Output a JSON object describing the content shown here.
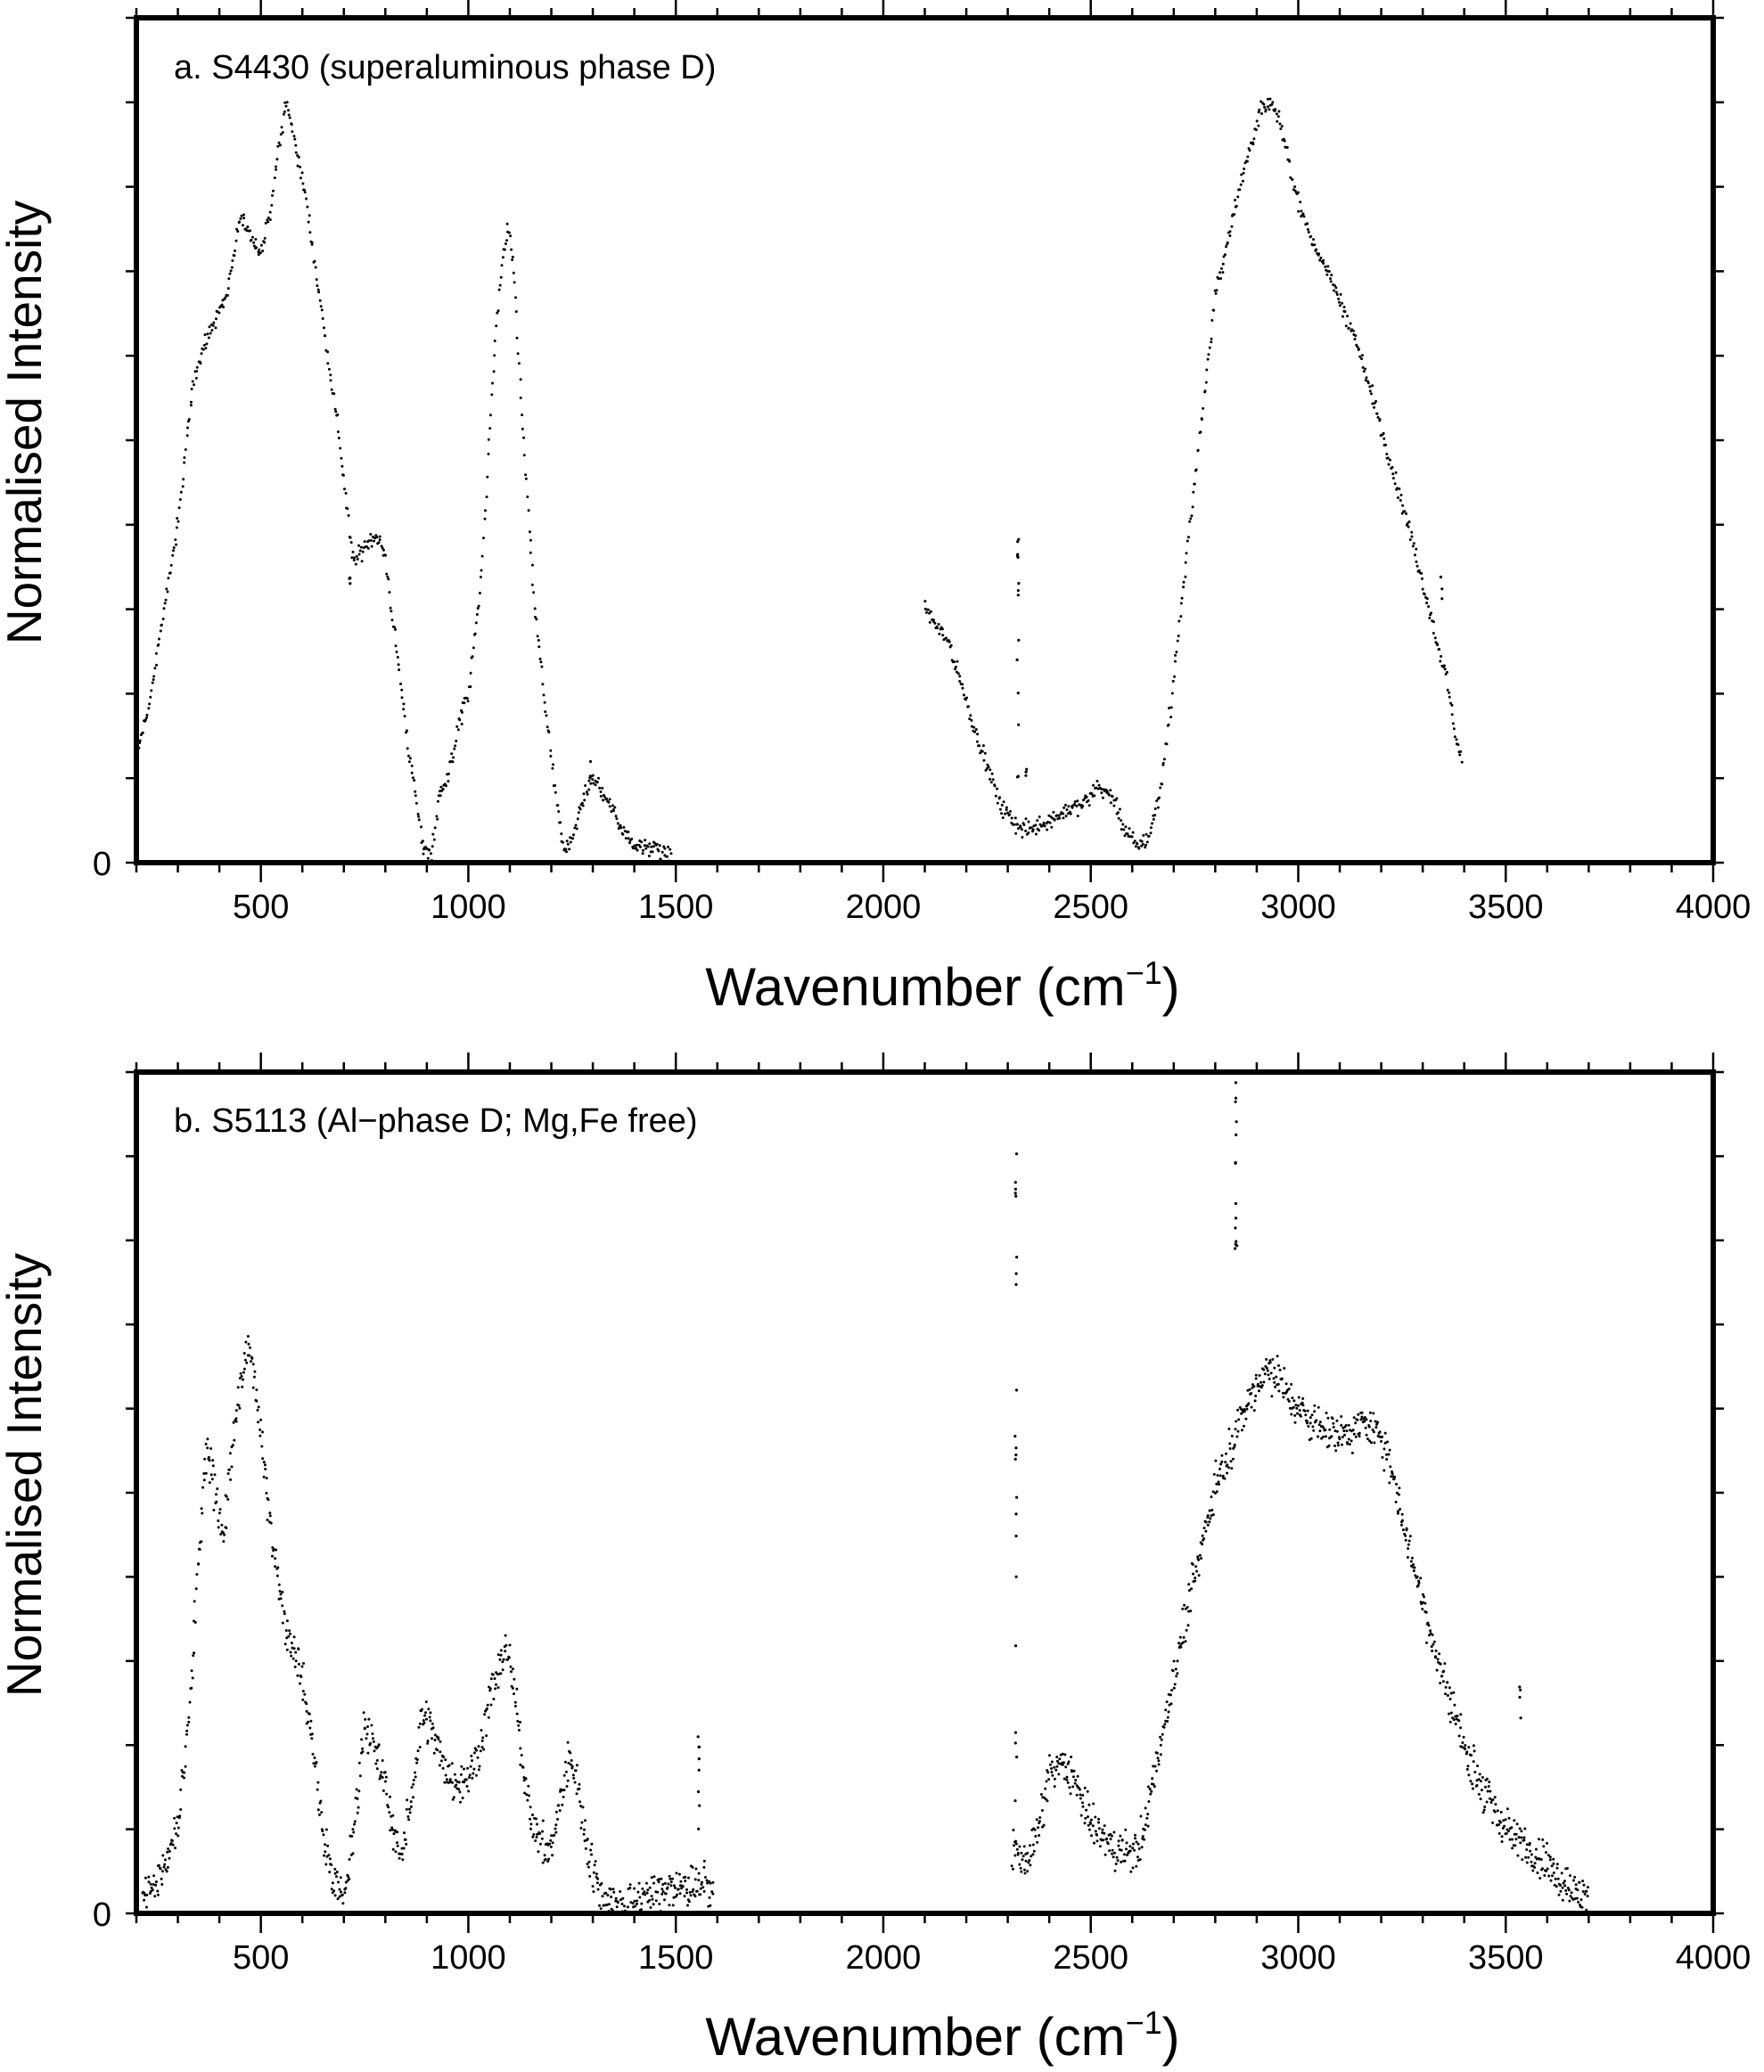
{
  "chart_data": [
    {
      "type": "scatter",
      "title": "a. S4430 (superaluminous phase D)",
      "xlabel": "Wavenumber (cm",
      "xlabel_sup": "−1",
      "xlabel_end": ")",
      "ylabel": "Normalised Intensity",
      "xlim": [
        200,
        4000
      ],
      "ylim": [
        0,
        1.0
      ],
      "xticks": [
        500,
        1000,
        1500,
        2000,
        2500,
        3000,
        3500,
        4000
      ],
      "xtick_labels": [
        "500",
        "1000",
        "1500",
        "2000",
        "2500",
        "3000",
        "3500",
        "4000"
      ],
      "ytick_label": "0",
      "noise": 0.012,
      "series": [
        {
          "x": [
            205,
            230,
            260,
            300,
            340,
            380,
            420,
            450,
            470,
            500,
            520,
            545,
            560,
            580,
            610,
            650,
            690,
            720,
            730,
            760,
            780,
            800,
            830,
            860,
            890,
            910,
            930,
            950,
            980,
            1000,
            1030,
            1060,
            1080,
            1095,
            1110,
            1130,
            1160,
            1200,
            1230,
            1250,
            1280,
            1300,
            1330,
            1360,
            1400,
            1440,
            1470,
            1490
          ],
          "y": [
            0.135,
            0.185,
            0.28,
            0.4,
            0.58,
            0.63,
            0.68,
            0.76,
            0.75,
            0.72,
            0.76,
            0.85,
            0.9,
            0.86,
            0.78,
            0.64,
            0.5,
            0.36,
            0.36,
            0.38,
            0.39,
            0.36,
            0.24,
            0.12,
            0.02,
            0.01,
            0.08,
            0.1,
            0.17,
            0.2,
            0.33,
            0.58,
            0.71,
            0.75,
            0.7,
            0.52,
            0.3,
            0.12,
            0.01,
            0.03,
            0.08,
            0.1,
            0.08,
            0.05,
            0.02,
            0.02,
            0.01,
            0.01
          ]
        },
        {
          "x": [
            2100,
            2130,
            2160,
            2200,
            2240,
            2280,
            2310,
            2330,
            2360,
            2400,
            2440,
            2480,
            2520,
            2550,
            2580,
            2610,
            2640,
            2670,
            2700,
            2750,
            2800,
            2840,
            2880,
            2910,
            2935,
            2960,
            2990,
            3030,
            3080,
            3130,
            3180,
            3230,
            3280,
            3320,
            3360,
            3380,
            3395
          ],
          "y": [
            0.3,
            0.28,
            0.26,
            0.19,
            0.13,
            0.07,
            0.05,
            0.04,
            0.04,
            0.05,
            0.06,
            0.07,
            0.09,
            0.08,
            0.04,
            0.02,
            0.03,
            0.09,
            0.22,
            0.45,
            0.67,
            0.76,
            0.84,
            0.89,
            0.9,
            0.87,
            0.8,
            0.74,
            0.69,
            0.63,
            0.55,
            0.46,
            0.37,
            0.29,
            0.21,
            0.15,
            0.12
          ]
        }
      ],
      "spikes": [
        {
          "x": 2325,
          "ymin": 0.05,
          "ymax": 0.39,
          "count": 14
        },
        {
          "x": 2345,
          "ymin": 0.1,
          "ymax": 0.13,
          "count": 3
        },
        {
          "x": 3345,
          "ymin": 0.31,
          "ymax": 0.34,
          "count": 3
        },
        {
          "x": 715,
          "ymin": 0.31,
          "ymax": 0.36,
          "count": 4
        },
        {
          "x": 1295,
          "ymin": 0.1,
          "ymax": 0.12,
          "count": 3
        }
      ]
    },
    {
      "type": "scatter",
      "title": "b. S5113 (Al−phase D; Mg,Fe free)",
      "xlabel": "Wavenumber (cm",
      "xlabel_sup": "−1",
      "xlabel_end": ")",
      "ylabel": "Normalised Intensity",
      "xlim": [
        200,
        4000
      ],
      "ylim": [
        0,
        1.0
      ],
      "xticks": [
        500,
        1000,
        1500,
        2000,
        2500,
        3000,
        3500,
        4000
      ],
      "xtick_labels": [
        "500",
        "1000",
        "1500",
        "2000",
        "2500",
        "3000",
        "3500",
        "4000"
      ],
      "ytick_label": "0",
      "noise": 0.03,
      "series": [
        {
          "x": [
            215,
            240,
            270,
            300,
            330,
            350,
            370,
            390,
            410,
            430,
            450,
            470,
            490,
            510,
            530,
            560,
            590,
            620,
            650,
            680,
            700,
            720,
            750,
            770,
            800,
            820,
            840,
            860,
            890,
            910,
            940,
            970,
            1000,
            1030,
            1060,
            1090,
            1110,
            1130,
            1160,
            1190,
            1210,
            1240,
            1260,
            1290,
            1320,
            1360,
            1400,
            1440,
            1480,
            1520,
            1560,
            1590
          ],
          "y": [
            0.02,
            0.03,
            0.06,
            0.1,
            0.25,
            0.42,
            0.55,
            0.5,
            0.45,
            0.55,
            0.62,
            0.68,
            0.62,
            0.52,
            0.44,
            0.34,
            0.3,
            0.22,
            0.1,
            0.03,
            0.02,
            0.08,
            0.23,
            0.2,
            0.15,
            0.1,
            0.06,
            0.13,
            0.24,
            0.22,
            0.18,
            0.15,
            0.16,
            0.2,
            0.27,
            0.32,
            0.27,
            0.18,
            0.1,
            0.07,
            0.1,
            0.18,
            0.16,
            0.07,
            0.02,
            0.01,
            0.01,
            0.02,
            0.03,
            0.03,
            0.03,
            0.03
          ]
        },
        {
          "x": [
            2310,
            2340,
            2370,
            2400,
            2430,
            2450,
            2480,
            2510,
            2540,
            2570,
            2600,
            2630,
            2660,
            2700,
            2750,
            2800,
            2840,
            2870,
            2900,
            2930,
            2960,
            3000,
            3050,
            3100,
            3150,
            3200,
            3230,
            3260,
            3300,
            3350,
            3400,
            3450,
            3500,
            3550,
            3600,
            3640,
            3680,
            3700
          ],
          "y": [
            0.08,
            0.06,
            0.09,
            0.16,
            0.18,
            0.17,
            0.13,
            0.1,
            0.08,
            0.08,
            0.07,
            0.1,
            0.18,
            0.28,
            0.4,
            0.51,
            0.56,
            0.6,
            0.63,
            0.65,
            0.63,
            0.6,
            0.58,
            0.57,
            0.58,
            0.57,
            0.52,
            0.45,
            0.37,
            0.28,
            0.2,
            0.14,
            0.1,
            0.08,
            0.06,
            0.04,
            0.02,
            0.02
          ]
        }
      ],
      "spikes": [
        {
          "x": 2320,
          "ymin": 0.12,
          "ymax": 0.92,
          "count": 22
        },
        {
          "x": 2850,
          "ymin": 0.76,
          "ymax": 0.99,
          "count": 14
        },
        {
          "x": 1555,
          "ymin": 0.1,
          "ymax": 0.24,
          "count": 8
        },
        {
          "x": 3535,
          "ymin": 0.22,
          "ymax": 0.28,
          "count": 4
        }
      ]
    }
  ]
}
